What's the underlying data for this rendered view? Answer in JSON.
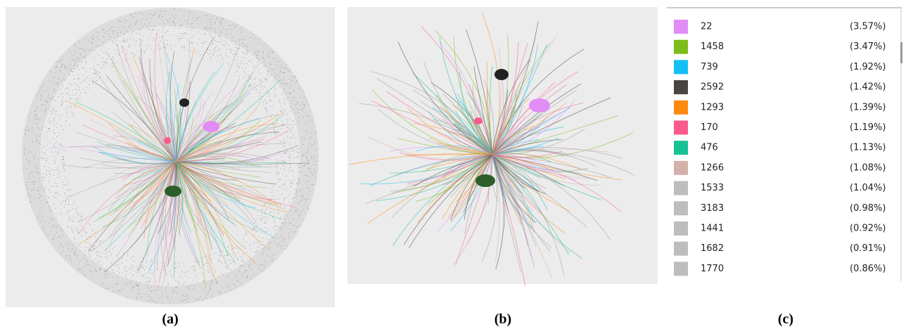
{
  "captions": [
    "(a)",
    "(b)",
    "(c)"
  ],
  "legend": {
    "rows": [
      {
        "label": "22",
        "percent": "(3.57%)",
        "color": "#e28cf5"
      },
      {
        "label": "1458",
        "percent": "(3.47%)",
        "color": "#7cbd1a"
      },
      {
        "label": "739",
        "percent": "(1.92%)",
        "color": "#12c0f5"
      },
      {
        "label": "2592",
        "percent": "(1.42%)",
        "color": "#4a4540"
      },
      {
        "label": "1293",
        "percent": "(1.39%)",
        "color": "#ff8a10"
      },
      {
        "label": "170",
        "percent": "(1.19%)",
        "color": "#fb5b8a"
      },
      {
        "label": "476",
        "percent": "(1.13%)",
        "color": "#17c095"
      },
      {
        "label": "1266",
        "percent": "(1.08%)",
        "color": "#d4b2ab"
      },
      {
        "label": "1533",
        "percent": "(1.04%)",
        "color": "#bdbdbd"
      },
      {
        "label": "3183",
        "percent": "(0.98%)",
        "color": "#bdbdbd"
      },
      {
        "label": "1441",
        "percent": "(0.92%)",
        "color": "#bdbdbd"
      },
      {
        "label": "1682",
        "percent": "(0.91%)",
        "color": "#bdbdbd"
      },
      {
        "label": "1770",
        "percent": "(0.86%)",
        "color": "#bdbdbd"
      }
    ]
  }
}
